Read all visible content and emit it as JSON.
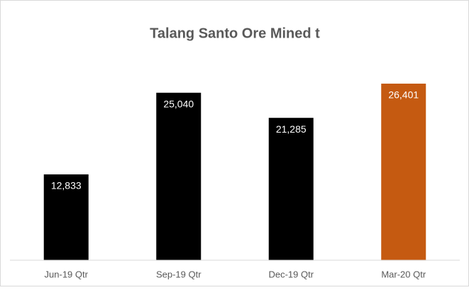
{
  "chart_data": {
    "type": "bar",
    "title": "Talang Santo Ore Mined t",
    "categories": [
      "Jun-19 Qtr",
      "Sep-19 Qtr",
      "Dec-19 Qtr",
      "Mar-20 Qtr"
    ],
    "values": [
      12833,
      25040,
      21285,
      26401
    ],
    "value_labels": [
      "12,833",
      "25,040",
      "21,285",
      "26,401"
    ],
    "colors": [
      "#000000",
      "#000000",
      "#000000",
      "#c55a11"
    ],
    "ylim": [
      0,
      30000
    ]
  }
}
